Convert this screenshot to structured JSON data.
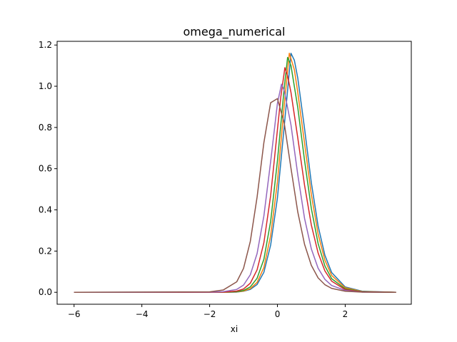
{
  "chart_data": {
    "type": "line",
    "title": "omega_numerical",
    "xlabel": "xi",
    "ylabel": "",
    "xlim": [
      -6.5,
      3.95
    ],
    "ylim": [
      -0.058,
      1.218
    ],
    "xticks": [
      -6,
      -4,
      -2,
      0,
      2
    ],
    "xtick_labels": [
      "−6",
      "−4",
      "−2",
      "0",
      "2"
    ],
    "yticks": [
      0.0,
      0.2,
      0.4,
      0.6,
      0.8,
      1.0,
      1.2
    ],
    "ytick_labels": [
      "0.0",
      "0.2",
      "0.4",
      "0.6",
      "0.8",
      "1.0",
      "1.2"
    ],
    "grid": false,
    "legend": "none",
    "x_range": [
      -6,
      3.5
    ],
    "series": [
      {
        "color": "#1f77b4",
        "peak_x": 0.4,
        "peak_y": 1.16,
        "x": [
          -6.0,
          -2.0,
          -1.6,
          -1.2,
          -1.0,
          -0.8,
          -0.6,
          -0.4,
          -0.2,
          0.0,
          0.2,
          0.3,
          0.4,
          0.5,
          0.6,
          0.8,
          1.0,
          1.2,
          1.4,
          1.6,
          2.0,
          2.5,
          3.5
        ],
        "y": [
          0.0,
          0.0,
          0.0,
          0.001,
          0.005,
          0.014,
          0.038,
          0.097,
          0.229,
          0.458,
          0.804,
          0.98,
          1.16,
          1.126,
          1.04,
          0.795,
          0.532,
          0.322,
          0.18,
          0.096,
          0.026,
          0.005,
          0.0
        ]
      },
      {
        "color": "#ff7f0e",
        "peak_x": 0.35,
        "peak_y": 1.16,
        "x": [
          -6.0,
          -2.0,
          -1.6,
          -1.2,
          -1.0,
          -0.8,
          -0.6,
          -0.4,
          -0.2,
          0.0,
          0.2,
          0.35,
          0.5,
          0.6,
          0.8,
          1.0,
          1.2,
          1.4,
          1.6,
          2.0,
          2.5,
          3.5
        ],
        "y": [
          0.0,
          0.0,
          0.0,
          0.002,
          0.006,
          0.018,
          0.048,
          0.12,
          0.275,
          0.536,
          0.906,
          1.16,
          1.08,
          0.97,
          0.724,
          0.475,
          0.283,
          0.156,
          0.082,
          0.022,
          0.004,
          0.0
        ]
      },
      {
        "color": "#2ca02c",
        "peak_x": 0.3,
        "peak_y": 1.14,
        "x": [
          -6.0,
          -2.0,
          -1.6,
          -1.2,
          -1.0,
          -0.8,
          -0.6,
          -0.4,
          -0.2,
          0.0,
          0.2,
          0.3,
          0.4,
          0.6,
          0.8,
          1.0,
          1.2,
          1.4,
          1.6,
          2.0,
          2.5,
          3.5
        ],
        "y": [
          0.0,
          0.0,
          0.001,
          0.003,
          0.009,
          0.026,
          0.068,
          0.16,
          0.344,
          0.637,
          0.991,
          1.14,
          1.1,
          0.897,
          0.64,
          0.407,
          0.237,
          0.128,
          0.066,
          0.017,
          0.003,
          0.0
        ]
      },
      {
        "color": "#d62728",
        "peak_x": 0.22,
        "peak_y": 1.09,
        "x": [
          -6.0,
          -2.0,
          -1.6,
          -1.2,
          -1.0,
          -0.8,
          -0.6,
          -0.4,
          -0.2,
          0.0,
          0.1,
          0.22,
          0.3,
          0.4,
          0.6,
          0.8,
          1.0,
          1.2,
          1.4,
          1.6,
          2.0,
          2.5,
          3.5
        ],
        "y": [
          0.0,
          0.0,
          0.001,
          0.006,
          0.016,
          0.044,
          0.109,
          0.24,
          0.469,
          0.789,
          0.948,
          1.09,
          1.05,
          0.97,
          0.75,
          0.52,
          0.327,
          0.191,
          0.104,
          0.054,
          0.013,
          0.002,
          0.0
        ]
      },
      {
        "color": "#9467bd",
        "peak_x": 0.12,
        "peak_y": 1.01,
        "x": [
          -6.0,
          -2.0,
          -1.6,
          -1.2,
          -1.0,
          -0.8,
          -0.6,
          -0.4,
          -0.2,
          0.0,
          0.12,
          0.2,
          0.4,
          0.6,
          0.8,
          1.0,
          1.2,
          1.4,
          1.6,
          2.0,
          2.5,
          3.5
        ],
        "y": [
          0.0,
          0.001,
          0.003,
          0.014,
          0.035,
          0.085,
          0.188,
          0.37,
          0.634,
          0.917,
          1.01,
          0.98,
          0.812,
          0.571,
          0.359,
          0.211,
          0.117,
          0.063,
          0.033,
          0.009,
          0.001,
          0.0
        ]
      },
      {
        "color": "#8c564b",
        "peak_x": 0.0,
        "peak_y": 0.94,
        "x": [
          -6.0,
          -2.0,
          -1.6,
          -1.2,
          -1.0,
          -0.8,
          -0.6,
          -0.4,
          -0.2,
          0.0,
          0.2,
          0.4,
          0.6,
          0.8,
          1.0,
          1.2,
          1.4,
          1.6,
          2.0,
          2.5,
          3.5
        ],
        "y": [
          0.0,
          0.002,
          0.011,
          0.051,
          0.116,
          0.247,
          0.462,
          0.726,
          0.92,
          0.94,
          0.822,
          0.602,
          0.39,
          0.233,
          0.131,
          0.07,
          0.037,
          0.019,
          0.005,
          0.001,
          0.0
        ]
      }
    ]
  }
}
